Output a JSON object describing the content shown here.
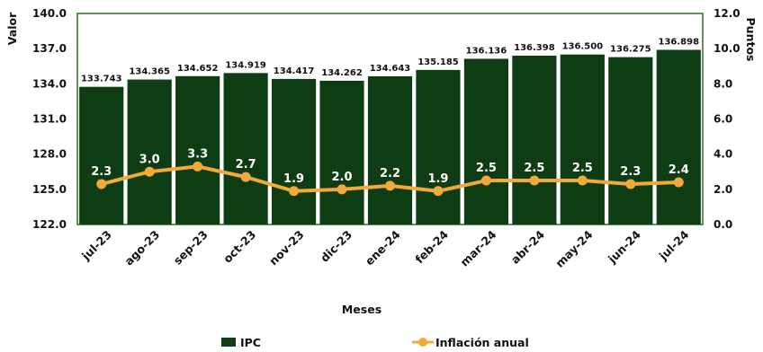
{
  "chart_data": {
    "type": "bar",
    "categories": [
      "jul-23",
      "ago-23",
      "sep-23",
      "oct-23",
      "nov-23",
      "dic-23",
      "ene-24",
      "feb-24",
      "mar-24",
      "abr-24",
      "may-24",
      "jun-24",
      "jul-24"
    ],
    "series": [
      {
        "name": "IPC",
        "type": "bar",
        "axis": "left",
        "values": [
          133.743,
          134.365,
          134.652,
          134.919,
          134.417,
          134.262,
          134.643,
          135.185,
          136.136,
          136.398,
          136.5,
          136.275,
          136.898
        ],
        "labels": [
          "133.743",
          "134.365",
          "134.652",
          "134.919",
          "134.417",
          "134.262",
          "134.643",
          "135.185",
          "136.136",
          "136.398",
          "136.500",
          "136.275",
          "136.898"
        ]
      },
      {
        "name": "Inflación anual",
        "type": "line",
        "axis": "right",
        "values": [
          2.3,
          3.0,
          3.3,
          2.7,
          1.9,
          2.0,
          2.2,
          1.9,
          2.5,
          2.5,
          2.5,
          2.3,
          2.4
        ],
        "labels": [
          "2.3",
          "3.0",
          "3.3",
          "2.7",
          "1.9",
          "2.0",
          "2.2",
          "1.9",
          "2.5",
          "2.5",
          "2.5",
          "2.3",
          "2.4"
        ]
      }
    ],
    "xlabel": "Meses",
    "ylabel": "Valor",
    "y2label": "Puntos",
    "ylim": [
      122.0,
      140.0
    ],
    "y2lim": [
      0.0,
      12.0
    ],
    "yticks": [
      "122.0",
      "125.0",
      "128.0",
      "131.0",
      "134.0",
      "137.0",
      "140.0"
    ],
    "y2ticks": [
      "0.0",
      "2.0",
      "4.0",
      "6.0",
      "8.0",
      "10.0",
      "12.0"
    ],
    "grid": false,
    "legend_position": "bottom",
    "colors": {
      "bar": "#0f3d13",
      "line": "#f2a93b",
      "plot_border": "#2e6b22"
    }
  }
}
